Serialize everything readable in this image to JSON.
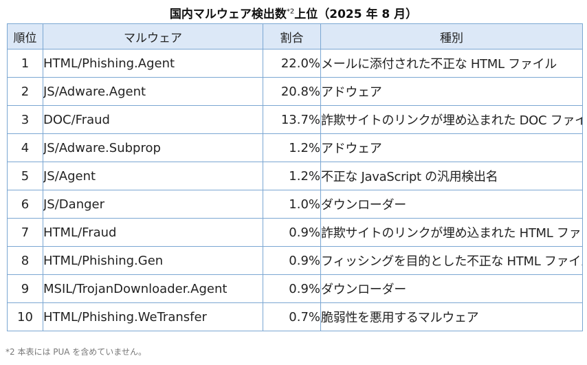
{
  "title": {
    "main": "国内マルウェア検出数",
    "note_mark": "*2",
    "rest": "上位（2025 年 8 月）"
  },
  "table": {
    "headers": {
      "rank": "順位",
      "malware": "マルウェア",
      "ratio": "割合",
      "type": "種別"
    },
    "rows": [
      {
        "rank": "1",
        "malware": "HTML/Phishing.Agent",
        "ratio": "22.0%",
        "type": "メールに添付された不正な HTML ファイル"
      },
      {
        "rank": "2",
        "malware": "JS/Adware.Agent",
        "ratio": "20.8%",
        "type": "アドウェア"
      },
      {
        "rank": "3",
        "malware": "DOC/Fraud",
        "ratio": "13.7%",
        "type": "詐欺サイトのリンクが埋め込まれた DOC ファイル"
      },
      {
        "rank": "4",
        "malware": "JS/Adware.Subprop",
        "ratio": "1.2%",
        "type": "アドウェア"
      },
      {
        "rank": "5",
        "malware": "JS/Agent",
        "ratio": "1.2%",
        "type": "不正な JavaScript の汎用検出名"
      },
      {
        "rank": "6",
        "malware": "JS/Danger",
        "ratio": "1.0%",
        "type": "ダウンローダー"
      },
      {
        "rank": "7",
        "malware": "HTML/Fraud",
        "ratio": "0.9%",
        "type": "詐欺サイトのリンクが埋め込まれた HTML ファイル"
      },
      {
        "rank": "8",
        "malware": "HTML/Phishing.Gen",
        "ratio": "0.9%",
        "type": "フィッシングを目的とした不正な HTML ファイル"
      },
      {
        "rank": "9",
        "malware": "MSIL/TrojanDownloader.Agent",
        "ratio": "0.9%",
        "type": "ダウンローダー"
      },
      {
        "rank": "10",
        "malware": "HTML/Phishing.WeTransfer",
        "ratio": "0.7%",
        "type": "脆弱性を悪用するマルウェア"
      }
    ]
  },
  "footnote": "*2 本表には PUA を含めていません。",
  "colors": {
    "header_bg": "#dce8f7",
    "border": "#7aa6d2"
  }
}
